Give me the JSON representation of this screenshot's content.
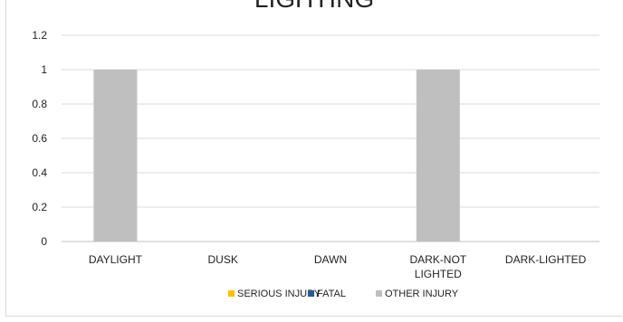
{
  "chart_data": {
    "type": "bar",
    "title": "LIGHTING",
    "categories": [
      "DAYLIGHT",
      "DUSK",
      "DAWN",
      "DARK-NOT LIGHTED",
      "DARK-LIGHTED"
    ],
    "category_lines": [
      [
        "DAYLIGHT"
      ],
      [
        "DUSK"
      ],
      [
        "DAWN"
      ],
      [
        "DARK-NOT",
        "LIGHTED"
      ],
      [
        "DARK-LIGHTED"
      ]
    ],
    "series": [
      {
        "name": "SERIOUS INJURY",
        "color": "#ffc000",
        "values": [
          0,
          0,
          0,
          0,
          0
        ]
      },
      {
        "name": "FATAL",
        "color": "#255e91",
        "values": [
          0,
          0,
          0,
          0,
          0
        ]
      },
      {
        "name": "OTHER INJURY",
        "color": "#bfbfbf",
        "values": [
          1,
          0,
          0,
          1,
          0
        ]
      }
    ],
    "y_ticks": [
      "0",
      "0.2",
      "0.4",
      "0.6",
      "0.8",
      "1",
      "1.2"
    ],
    "ylim": [
      0,
      1.2
    ],
    "grid": true,
    "legend_position": "bottom"
  }
}
